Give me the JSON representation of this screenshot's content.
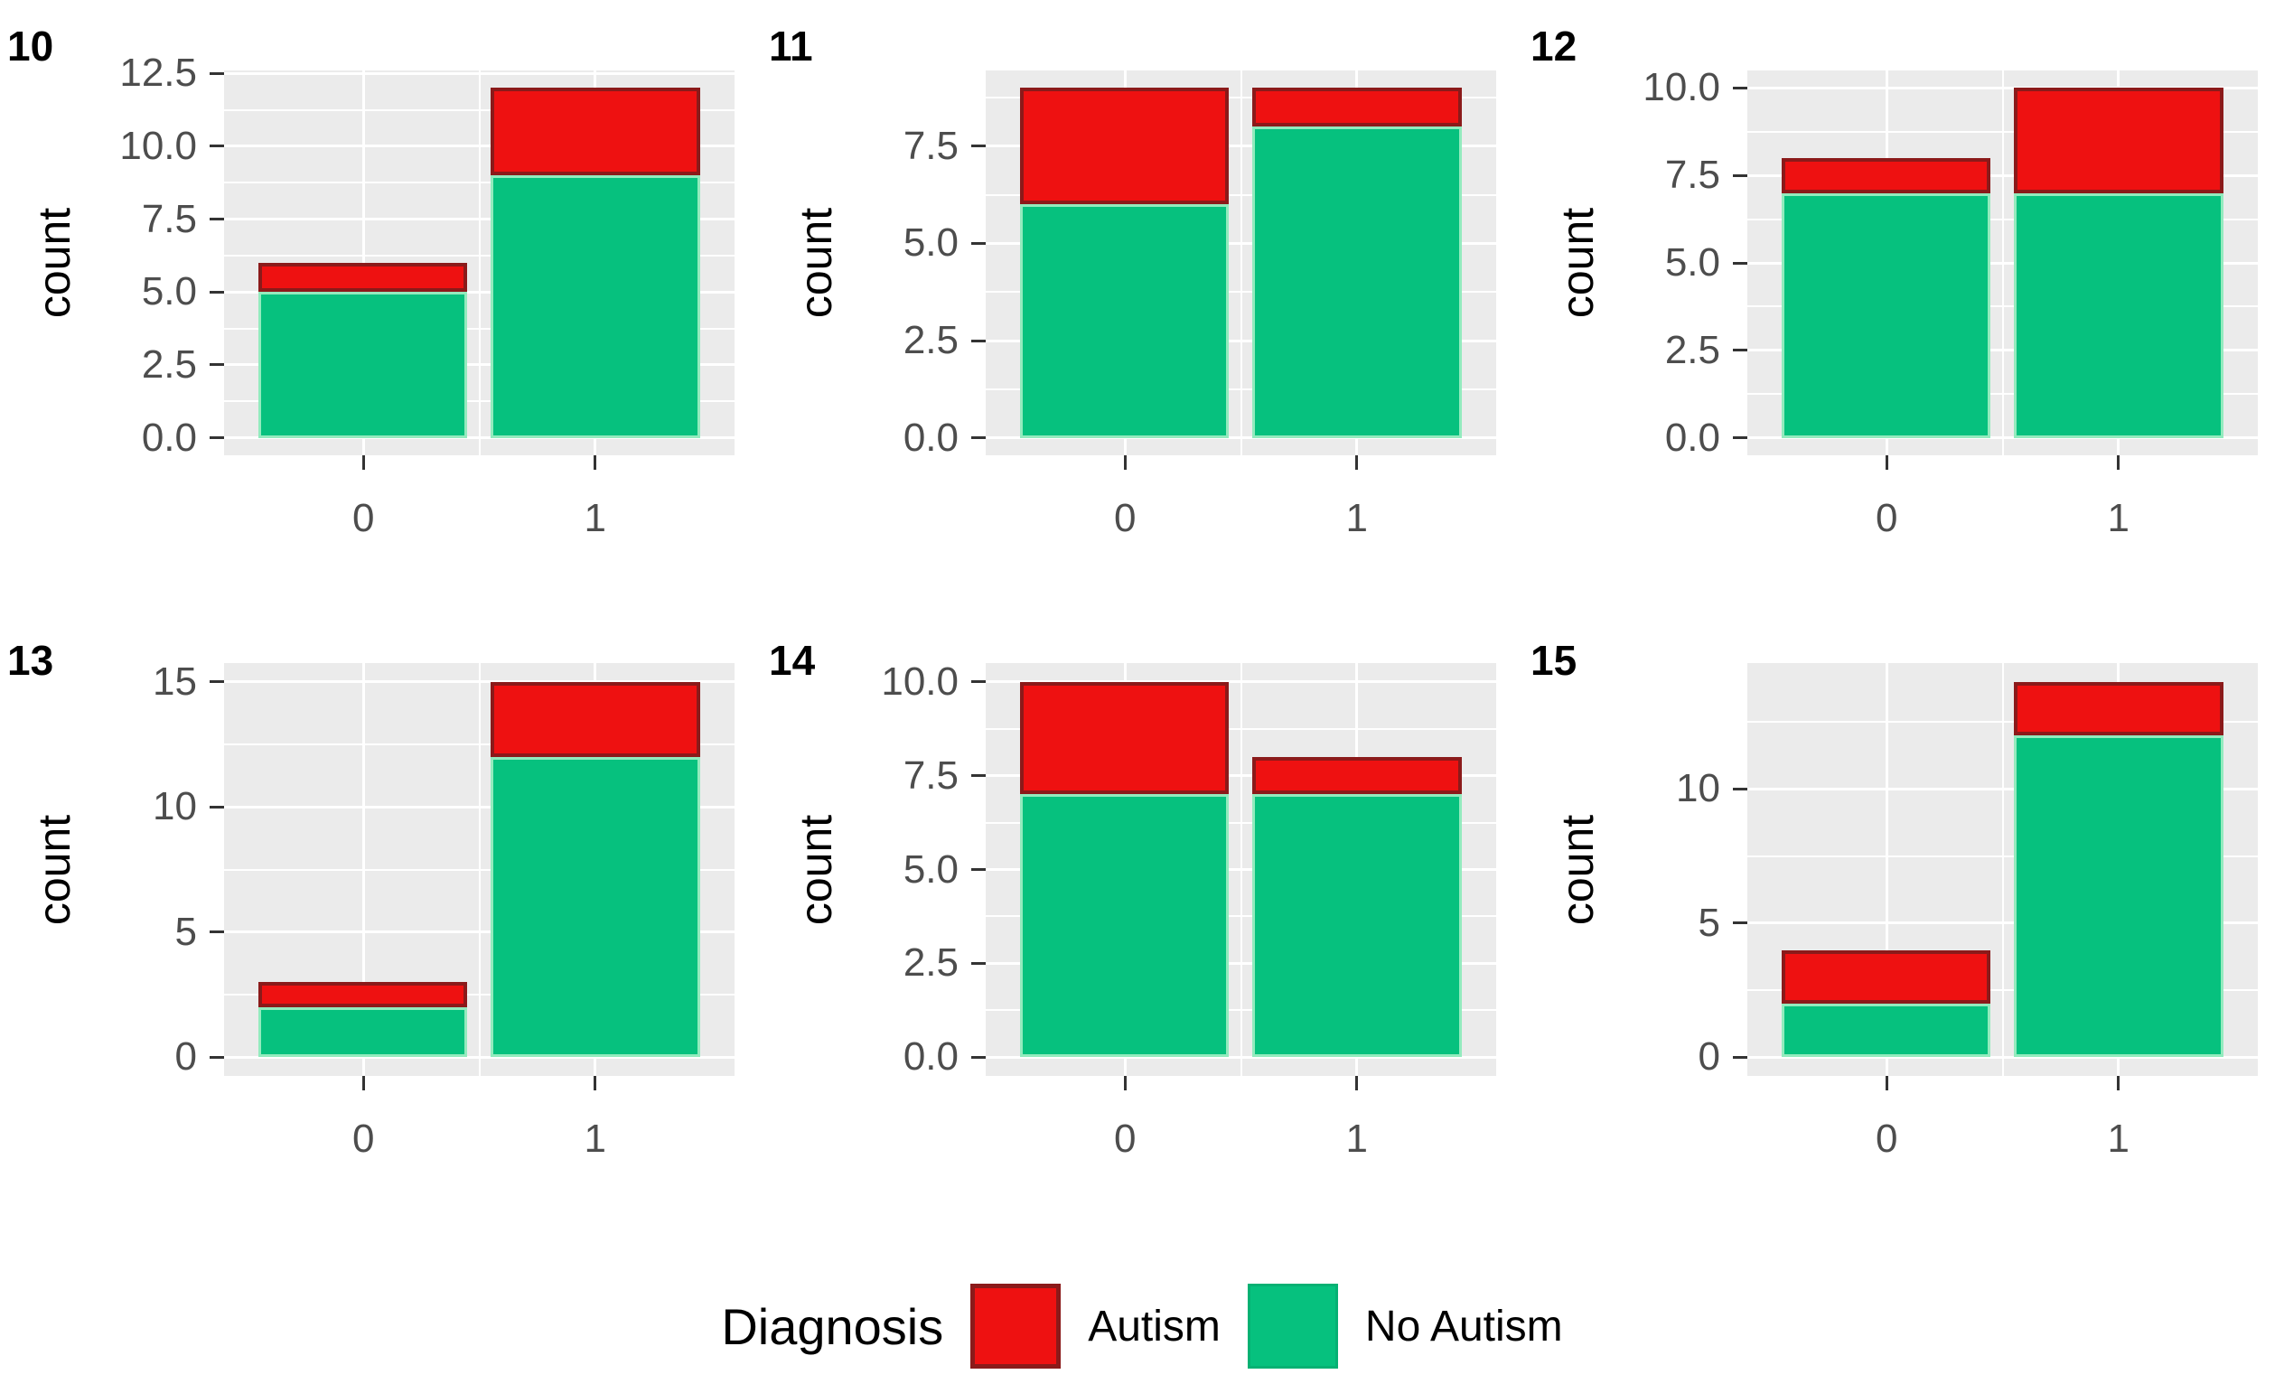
{
  "figure": {
    "background": "#FFFFFF"
  },
  "colors": {
    "autism_fill": "#EE1111",
    "autism_border": "#8B1A1A",
    "no_autism_fill": "#06C17E",
    "no_autism_border": "#93EBBE",
    "panel_bg": "#EBEBEB",
    "gridline": "#FFFFFF",
    "axis_text": "#4D4D4D",
    "tick_mark": "#333333",
    "title_text": "#000000"
  },
  "legend": {
    "title": "Diagnosis",
    "items": [
      {
        "label": "Autism",
        "color": "#EE1111"
      },
      {
        "label": "No Autism",
        "color": "#06C17E"
      }
    ],
    "position": "bottom"
  },
  "chart_data": [
    {
      "type": "bar",
      "stacked": true,
      "title": "10",
      "xlabel": "",
      "ylabel": "count",
      "categories": [
        "0",
        "1"
      ],
      "series": [
        {
          "name": "No Autism",
          "values": [
            5,
            9
          ]
        },
        {
          "name": "Autism",
          "values": [
            1,
            3
          ]
        }
      ],
      "totals": [
        6,
        12
      ],
      "ymax": 12,
      "ylim": [
        -0.6,
        12.6
      ],
      "yticks": {
        "values": [
          0,
          2.5,
          5,
          7.5,
          10,
          12.5
        ],
        "labels": [
          "0.0",
          "2.5",
          "5.0",
          "7.5",
          "10.0",
          "12.5"
        ]
      },
      "grid": true,
      "legend_position": "none"
    },
    {
      "type": "bar",
      "stacked": true,
      "title": "11",
      "xlabel": "",
      "ylabel": "count",
      "categories": [
        "0",
        "1"
      ],
      "series": [
        {
          "name": "No Autism",
          "values": [
            6,
            8
          ]
        },
        {
          "name": "Autism",
          "values": [
            3,
            1
          ]
        }
      ],
      "totals": [
        9,
        9
      ],
      "ymax": 9,
      "ylim": [
        -0.45,
        9.45
      ],
      "yticks": {
        "values": [
          0,
          2.5,
          5,
          7.5
        ],
        "labels": [
          "0.0",
          "2.5",
          "5.0",
          "7.5"
        ]
      },
      "grid": true,
      "legend_position": "none"
    },
    {
      "type": "bar",
      "stacked": true,
      "title": "12",
      "xlabel": "",
      "ylabel": "count",
      "categories": [
        "0",
        "1"
      ],
      "series": [
        {
          "name": "No Autism",
          "values": [
            7,
            7
          ]
        },
        {
          "name": "Autism",
          "values": [
            1,
            3
          ]
        }
      ],
      "totals": [
        8,
        10
      ],
      "ymax": 10,
      "ylim": [
        -0.5,
        10.5
      ],
      "yticks": {
        "values": [
          0,
          2.5,
          5,
          7.5,
          10
        ],
        "labels": [
          "0.0",
          "2.5",
          "5.0",
          "7.5",
          "10.0"
        ]
      },
      "grid": true,
      "legend_position": "none"
    },
    {
      "type": "bar",
      "stacked": true,
      "title": "13",
      "xlabel": "",
      "ylabel": "count",
      "categories": [
        "0",
        "1"
      ],
      "series": [
        {
          "name": "No Autism",
          "values": [
            2,
            12
          ]
        },
        {
          "name": "Autism",
          "values": [
            1,
            3
          ]
        }
      ],
      "totals": [
        3,
        15
      ],
      "ymax": 15,
      "ylim": [
        -0.75,
        15.75
      ],
      "yticks": {
        "values": [
          0,
          5,
          10,
          15
        ],
        "labels": [
          "0",
          "5",
          "10",
          "15"
        ]
      },
      "grid": true,
      "legend_position": "none"
    },
    {
      "type": "bar",
      "stacked": true,
      "title": "14",
      "xlabel": "",
      "ylabel": "count",
      "categories": [
        "0",
        "1"
      ],
      "series": [
        {
          "name": "No Autism",
          "values": [
            7,
            7
          ]
        },
        {
          "name": "Autism",
          "values": [
            3,
            1
          ]
        }
      ],
      "totals": [
        10,
        8
      ],
      "ymax": 10,
      "ylim": [
        -0.5,
        10.5
      ],
      "yticks": {
        "values": [
          0,
          2.5,
          5,
          7.5,
          10
        ],
        "labels": [
          "0.0",
          "2.5",
          "5.0",
          "7.5",
          "10.0"
        ]
      },
      "grid": true,
      "legend_position": "none"
    },
    {
      "type": "bar",
      "stacked": true,
      "title": "15",
      "xlabel": "",
      "ylabel": "count",
      "categories": [
        "0",
        "1"
      ],
      "series": [
        {
          "name": "No Autism",
          "values": [
            2,
            12
          ]
        },
        {
          "name": "Autism",
          "values": [
            2,
            2
          ]
        }
      ],
      "totals": [
        4,
        14
      ],
      "ymax": 14,
      "ylim": [
        -0.7,
        14.7
      ],
      "yticks": {
        "values": [
          0,
          5,
          10
        ],
        "labels": [
          "0",
          "5",
          "10"
        ]
      },
      "grid": true,
      "legend_position": "none"
    }
  ]
}
